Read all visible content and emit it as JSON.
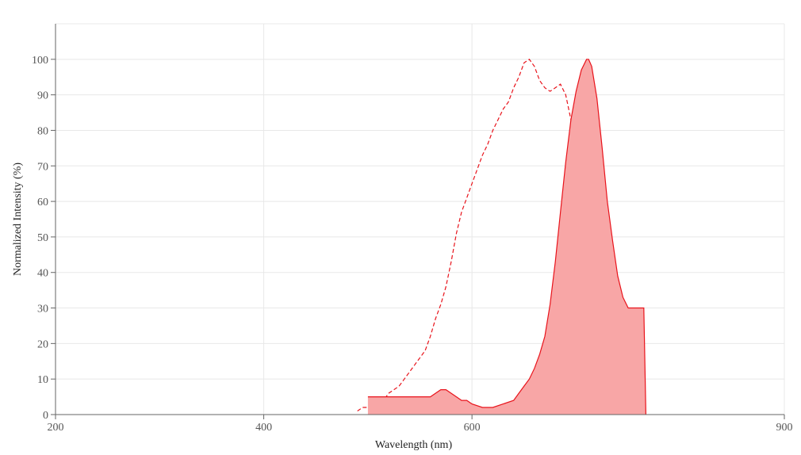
{
  "chart_data": {
    "type": "area",
    "xlabel": "Wavelength (nm)",
    "ylabel": "Normalized Intensity (%)",
    "xlim": [
      200,
      900
    ],
    "ylim": [
      0,
      110
    ],
    "x_ticks": [
      "200",
      "400",
      "600",
      "900"
    ],
    "y_ticks": [
      "0",
      "10",
      "20",
      "30",
      "40",
      "50",
      "60",
      "70",
      "80",
      "90",
      "100"
    ],
    "grid": true,
    "colors": {
      "line": "#e8131b",
      "fill": "#f8a6a6",
      "grid": "#e8e8e8",
      "axis": "#666666"
    },
    "series": [
      {
        "kind": "dashed-line",
        "x": [
          490,
          495,
          500,
          505,
          510,
          515,
          520,
          525,
          530,
          535,
          540,
          545,
          550,
          555,
          560,
          565,
          570,
          575,
          580,
          585,
          590,
          595,
          600,
          605,
          610,
          615,
          620,
          625,
          630,
          635,
          640,
          645,
          650,
          655,
          660,
          665,
          670,
          675,
          680,
          685,
          690,
          695,
          700,
          705,
          710,
          715,
          720,
          725,
          730,
          735,
          740,
          745,
          750,
          755
        ],
        "values": [
          1,
          2,
          2,
          2,
          3,
          4,
          6,
          7,
          8,
          10,
          12,
          14,
          16,
          18,
          22,
          27,
          31,
          36,
          43,
          51,
          57,
          61,
          65,
          69,
          73,
          76,
          80,
          83,
          86,
          88,
          92,
          95,
          99,
          100,
          98,
          94,
          92,
          91,
          92,
          93,
          90,
          83,
          73,
          60,
          47,
          35,
          23,
          13,
          7,
          4,
          3,
          2,
          1,
          0
        ]
      },
      {
        "kind": "filled-area",
        "x": [
          500,
          540,
          560,
          565,
          570,
          575,
          580,
          585,
          590,
          595,
          600,
          610,
          620,
          630,
          640,
          645,
          650,
          655,
          660,
          665,
          670,
          675,
          680,
          685,
          690,
          695,
          700,
          705,
          710,
          712,
          715,
          720,
          725,
          730,
          735,
          740,
          745,
          750,
          755,
          760,
          765,
          767
        ],
        "values": [
          5,
          5,
          5,
          6,
          7,
          7,
          6,
          5,
          4,
          4,
          3,
          2,
          2,
          3,
          4,
          6,
          8,
          10,
          13,
          17,
          22,
          31,
          43,
          57,
          71,
          83,
          91,
          97,
          100,
          100,
          98,
          89,
          75,
          60,
          49,
          39,
          33,
          30,
          30,
          30,
          30,
          0
        ]
      }
    ]
  }
}
